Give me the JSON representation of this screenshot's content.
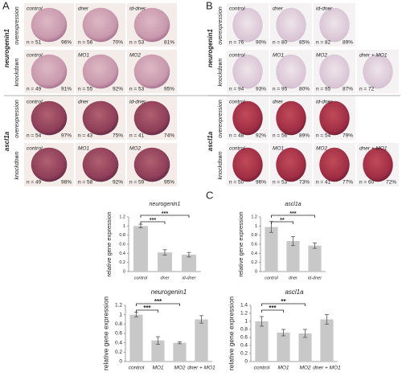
{
  "panel_a": {
    "label": "A",
    "groups": [
      {
        "gene": "neurogenin1",
        "rows": [
          {
            "condition": "overexpression",
            "cells": [
              {
                "name": "control",
                "n": "n = 51",
                "percent": "96%"
              },
              {
                "name": "dner",
                "n": "n = 56",
                "percent": "70%"
              },
              {
                "name": "id-dner",
                "n": "n = 53",
                "percent": "81%"
              }
            ]
          },
          {
            "condition": "knockdown",
            "cells": [
              {
                "name": "control",
                "n": "n = 49",
                "percent": "91%"
              },
              {
                "name": "MO1",
                "n": "n = 55",
                "percent": "92%"
              },
              {
                "name": "MO2",
                "n": "n = 53",
                "percent": "95%"
              }
            ]
          }
        ]
      },
      {
        "gene": "ascl1a",
        "rows": [
          {
            "condition": "overexpression",
            "cells": [
              {
                "name": "control",
                "n": "n = 54",
                "percent": "97%"
              },
              {
                "name": "dner",
                "n": "n = 43",
                "percent": "75%"
              },
              {
                "name": "id-dner",
                "n": "n = 41",
                "percent": "74%"
              }
            ]
          },
          {
            "condition": "knockdown",
            "cells": [
              {
                "name": "control",
                "n": "n = 49",
                "percent": "98%"
              },
              {
                "name": "MO1",
                "n": "n = 58",
                "percent": "92%"
              },
              {
                "name": "MO2",
                "n": "n = 59",
                "percent": "95%"
              }
            ]
          }
        ]
      }
    ]
  },
  "panel_b": {
    "label": "B",
    "groups": [
      {
        "gene": "neurogenin1",
        "rows": [
          {
            "condition": "overexpression",
            "cells": [
              {
                "name": "control",
                "n": "n = 76",
                "percent": "90%"
              },
              {
                "name": "dner",
                "n": "n = 80",
                "percent": "85%"
              },
              {
                "name": "id-dner",
                "n": "n = 82",
                "percent": "89%"
              }
            ]
          },
          {
            "condition": "knockdown",
            "cells": [
              {
                "name": "control",
                "n": "n = 94",
                "percent": "93%"
              },
              {
                "name": "MO1",
                "n": "n = 95",
                "percent": "80%"
              },
              {
                "name": "MO2",
                "n": "n = 95",
                "percent": "87%"
              },
              {
                "name": "dner + MO1",
                "n": "n = 72"
              }
            ]
          }
        ]
      },
      {
        "gene": "ascl1a",
        "rows": [
          {
            "condition": "overexpression",
            "cells": [
              {
                "name": "control",
                "n": "n = 48",
                "percent": "92%"
              },
              {
                "name": "dner",
                "n": "n = 56",
                "percent": "89%"
              },
              {
                "name": "id-dner",
                "n": "n = 54",
                "percent": "79%"
              }
            ]
          },
          {
            "condition": "knockdown",
            "cells": [
              {
                "name": "control",
                "n": "n = 50",
                "percent": "96%"
              },
              {
                "name": "MO1",
                "n": "n = 53",
                "percent": "73%"
              },
              {
                "name": "MO2",
                "n": "n = 41",
                "percent": "77%"
              },
              {
                "name": "dner + MO1",
                "n": "n = 60",
                "percent": "72%"
              }
            ]
          }
        ]
      }
    ]
  },
  "panel_c": {
    "label": "C"
  },
  "chart_data": [
    {
      "type": "bar",
      "title": "neurogenin1",
      "y_label": "relative gene expression",
      "categories": [
        "control",
        "dner",
        "id-dner"
      ],
      "values": [
        1.0,
        0.42,
        0.37
      ],
      "errors": [
        0.04,
        0.06,
        0.05
      ],
      "significance": [
        null,
        "***",
        "***"
      ],
      "color": "#c8c8c8",
      "ylim": [
        0,
        1.2
      ],
      "yticks": [
        0,
        0.2,
        0.4,
        0.6,
        0.8,
        1,
        1.2
      ]
    },
    {
      "type": "bar",
      "title": "ascl1a",
      "y_label": "relative gene expression",
      "categories": [
        "control",
        "dner",
        "id-dner"
      ],
      "values": [
        0.98,
        0.67,
        0.57
      ],
      "errors": [
        0.12,
        0.1,
        0.06
      ],
      "significance": [
        null,
        "**",
        "***"
      ],
      "color": "#c8c8c8",
      "ylim": [
        0,
        1.2
      ],
      "yticks": [
        0,
        0.2,
        0.4,
        0.6,
        0.8,
        1,
        1.2
      ]
    },
    {
      "type": "bar",
      "title": "neurogenin1",
      "y_label": "relative gene expression",
      "categories": [
        "control",
        "MO1",
        "MO2",
        "dner + MO1"
      ],
      "values": [
        1.0,
        0.45,
        0.4,
        0.9
      ],
      "errors": [
        0.05,
        0.08,
        0.02,
        0.08
      ],
      "significance": [
        null,
        "***",
        "***",
        null
      ],
      "color": "#c8c8c8",
      "ylim": [
        0,
        1.2
      ],
      "yticks": [
        0,
        0.2,
        0.4,
        0.6,
        0.8,
        1,
        1.2
      ]
    },
    {
      "type": "bar",
      "title": "ascl1a",
      "y_label": "relative gene expression",
      "categories": [
        "control",
        "MO1",
        "MO2",
        "dner + MO1"
      ],
      "values": [
        1.0,
        0.72,
        0.7,
        1.05
      ],
      "errors": [
        0.12,
        0.08,
        0.1,
        0.12
      ],
      "significance": [
        null,
        "***",
        "**",
        null
      ],
      "color": "#c8c8c8",
      "ylim": [
        0,
        1.4
      ],
      "yticks": [
        0,
        0.2,
        0.4,
        0.6,
        0.8,
        1,
        1.2,
        1.4
      ]
    }
  ]
}
